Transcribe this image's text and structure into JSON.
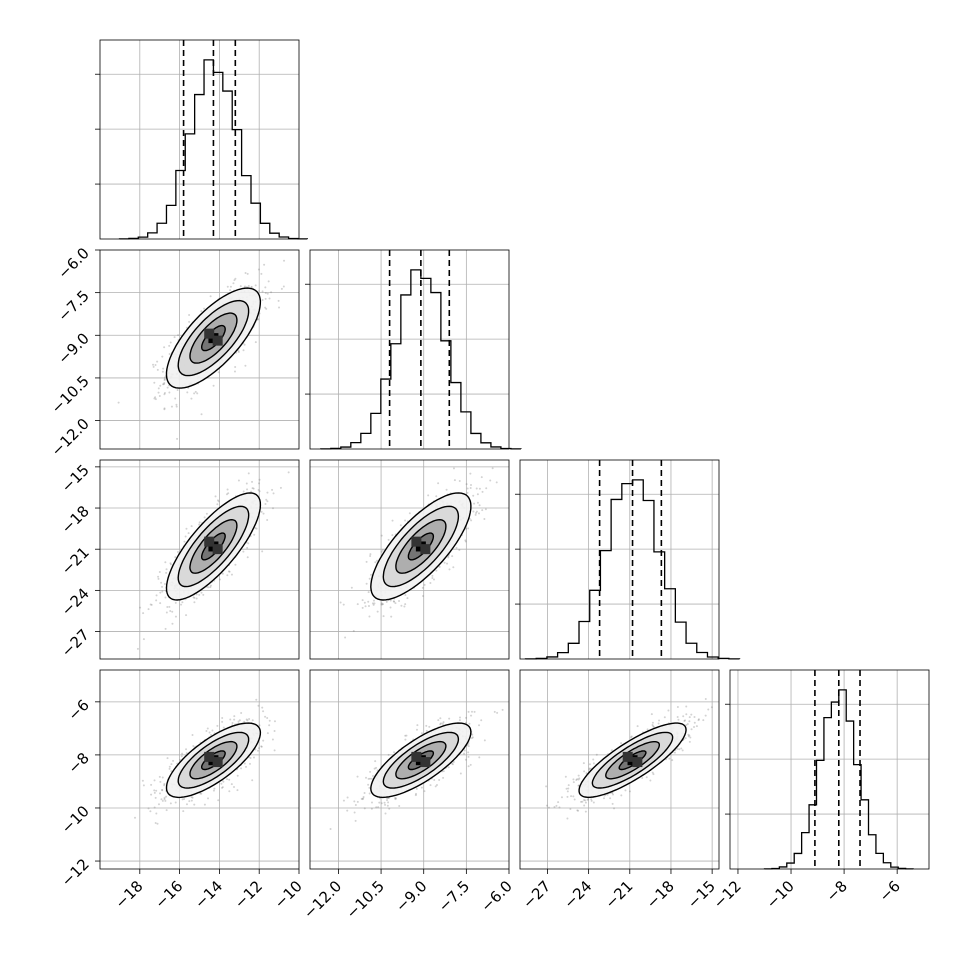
{
  "chart_data": {
    "type": "corner",
    "title": "",
    "grid": true,
    "colors": {
      "axes": "#000000",
      "grid": "#b0b0b0",
      "hist": "#000000",
      "points": "#808080",
      "contour": "#000000"
    },
    "parameters": [
      {
        "mean": -14.3,
        "sd": 1.18,
        "quantiles": [
          -15.8,
          -14.3,
          -13.2
        ],
        "range": [
          -20.0,
          -10.0
        ],
        "ticks": [
          -18,
          -16,
          -14,
          -12,
          -10
        ],
        "tick_labels": [
          "−18",
          "−16",
          "−14",
          "−12",
          "−10"
        ]
      },
      {
        "mean": -9.1,
        "sd": 0.88,
        "quantiles": [
          -10.2,
          -9.1,
          -8.1
        ],
        "range": [
          -13.0,
          -6.0
        ],
        "ticks": [
          -12.0,
          -10.5,
          -9.0,
          -7.5,
          -6.0
        ],
        "tick_labels": [
          "−12.0",
          "−10.5",
          "−9.0",
          "−7.5",
          "−6.0"
        ]
      },
      {
        "mean": -20.8,
        "sd": 1.95,
        "quantiles": [
          -23.2,
          -20.8,
          -18.7
        ],
        "range": [
          -29.0,
          -14.5
        ],
        "ticks": [
          -27,
          -24,
          -21,
          -18,
          -15
        ],
        "tick_labels": [
          "−27",
          "−24",
          "−21",
          "−18",
          "−15"
        ]
      },
      {
        "mean": -8.2,
        "sd": 0.7,
        "quantiles": [
          -9.1,
          -8.2,
          -7.4
        ],
        "range": [
          -12.3,
          -4.8
        ],
        "ticks": [
          -12,
          -10,
          -8,
          -6
        ],
        "tick_labels": [
          "−12",
          "−10",
          "−8",
          "−6"
        ]
      }
    ],
    "correlations": [
      {
        "row": 1,
        "col": 0,
        "rho": 0.72
      },
      {
        "row": 2,
        "col": 0,
        "rho": 0.78
      },
      {
        "row": 2,
        "col": 1,
        "rho": 0.75
      },
      {
        "row": 3,
        "col": 0,
        "rho": 0.74
      },
      {
        "row": 3,
        "col": 1,
        "rho": 0.76
      },
      {
        "row": 3,
        "col": 2,
        "rho": 0.82
      }
    ],
    "contour_levels_sigma": [
      0.5,
      1.0,
      1.5,
      2.0
    ],
    "histogram_bins": 20
  }
}
